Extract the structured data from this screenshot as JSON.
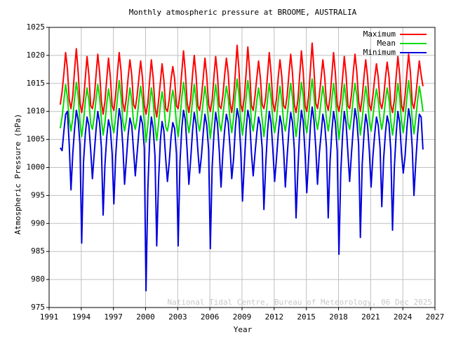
{
  "chart_data": {
    "type": "line",
    "title": "Monthly atmospheric pressure at BROOME, AUSTRALIA",
    "xlabel": "Year",
    "ylabel": "Atmospheric Pressure (hPa)",
    "credit": "National Tidal Centre, Bureau of Meteorology, 06 Dec 2025",
    "xlim": [
      1991,
      2027
    ],
    "xticks": [
      1991,
      1994,
      1997,
      2000,
      2003,
      2006,
      2009,
      2012,
      2015,
      2018,
      2021,
      2024,
      2027
    ],
    "ylim": [
      975,
      1025
    ],
    "yticks": [
      975,
      980,
      985,
      990,
      995,
      1000,
      1005,
      1010,
      1015,
      1020,
      1025
    ],
    "grid": true,
    "legend": "upper right",
    "x": [
      1992.04,
      1992.21,
      1992.38,
      1992.54,
      1992.71,
      1992.88,
      1993.04,
      1993.21,
      1993.38,
      1993.54,
      1993.71,
      1993.88,
      1994.04,
      1994.21,
      1994.38,
      1994.54,
      1994.71,
      1994.88,
      1995.04,
      1995.21,
      1995.38,
      1995.54,
      1995.71,
      1995.88,
      1996.04,
      1996.21,
      1996.38,
      1996.54,
      1996.71,
      1996.88,
      1997.04,
      1997.21,
      1997.38,
      1997.54,
      1997.71,
      1997.88,
      1998.04,
      1998.21,
      1998.38,
      1998.54,
      1998.71,
      1998.88,
      1999.04,
      1999.21,
      1999.38,
      1999.54,
      1999.71,
      1999.88,
      2000.04,
      2000.21,
      2000.38,
      2000.54,
      2000.71,
      2000.88,
      2001.04,
      2001.21,
      2001.38,
      2001.54,
      2001.71,
      2001.88,
      2002.04,
      2002.21,
      2002.38,
      2002.54,
      2002.71,
      2002.88,
      2003.04,
      2003.21,
      2003.38,
      2003.54,
      2003.71,
      2003.88,
      2004.04,
      2004.21,
      2004.38,
      2004.54,
      2004.71,
      2004.88,
      2005.04,
      2005.21,
      2005.38,
      2005.54,
      2005.71,
      2005.88,
      2006.04,
      2006.21,
      2006.38,
      2006.54,
      2006.71,
      2006.88,
      2007.04,
      2007.21,
      2007.38,
      2007.54,
      2007.71,
      2007.88,
      2008.04,
      2008.21,
      2008.38,
      2008.54,
      2008.71,
      2008.88,
      2009.04,
      2009.21,
      2009.38,
      2009.54,
      2009.71,
      2009.88,
      2010.04,
      2010.21,
      2010.38,
      2010.54,
      2010.71,
      2010.88,
      2011.04,
      2011.21,
      2011.38,
      2011.54,
      2011.71,
      2011.88,
      2012.04,
      2012.21,
      2012.38,
      2012.54,
      2012.71,
      2012.88,
      2013.04,
      2013.21,
      2013.38,
      2013.54,
      2013.71,
      2013.88,
      2014.04,
      2014.21,
      2014.38,
      2014.54,
      2014.71,
      2014.88,
      2015.04,
      2015.21,
      2015.38,
      2015.54,
      2015.71,
      2015.88,
      2016.04,
      2016.21,
      2016.38,
      2016.54,
      2016.71,
      2016.88,
      2017.04,
      2017.21,
      2017.38,
      2017.54,
      2017.71,
      2017.88,
      2018.04,
      2018.21,
      2018.38,
      2018.54,
      2018.71,
      2018.88,
      2019.04,
      2019.21,
      2019.38,
      2019.54,
      2019.71,
      2019.88,
      2020.04,
      2020.21,
      2020.38,
      2020.54,
      2020.71,
      2020.88,
      2021.04,
      2021.21,
      2021.38,
      2021.54,
      2021.71,
      2021.88,
      2022.04,
      2022.21,
      2022.38,
      2022.54,
      2022.71,
      2022.88,
      2023.04,
      2023.21,
      2023.38,
      2023.54,
      2023.71,
      2023.88,
      2024.04,
      2024.21,
      2024.38,
      2024.54,
      2024.71,
      2024.88,
      2025.04,
      2025.21,
      2025.38,
      2025.54,
      2025.71,
      2025.88
    ],
    "series": [
      {
        "name": "Maximum",
        "color": "#ff0000",
        "values": [
          1011.2,
          1013.5,
          1016.8,
          1020.5,
          1017.5,
          1012.0,
          1010.5,
          1012.8,
          1017.5,
          1021.2,
          1017.0,
          1011.5,
          1009.8,
          1012.0,
          1016.0,
          1019.8,
          1016.5,
          1011.0,
          1010.5,
          1012.5,
          1016.5,
          1020.2,
          1017.0,
          1011.8,
          1009.5,
          1011.8,
          1015.8,
          1019.5,
          1016.2,
          1011.0,
          1010.2,
          1013.0,
          1017.0,
          1020.5,
          1017.2,
          1011.5,
          1010.0,
          1012.5,
          1016.2,
          1019.2,
          1016.5,
          1011.2,
          1010.5,
          1012.8,
          1016.0,
          1019.0,
          1016.0,
          1011.0,
          1009.5,
          1011.5,
          1015.5,
          1019.2,
          1016.0,
          1010.8,
          1009.0,
          1011.8,
          1015.2,
          1018.5,
          1015.5,
          1010.5,
          1010.0,
          1012.2,
          1015.8,
          1018.0,
          1015.8,
          1011.0,
          1010.5,
          1013.0,
          1017.0,
          1020.8,
          1017.0,
          1011.5,
          1009.8,
          1012.2,
          1016.5,
          1020.0,
          1016.5,
          1011.0,
          1010.2,
          1012.5,
          1016.0,
          1019.5,
          1016.2,
          1011.2,
          1010.0,
          1012.0,
          1016.2,
          1019.8,
          1016.5,
          1011.0,
          1010.5,
          1012.8,
          1016.5,
          1019.5,
          1016.8,
          1011.5,
          1009.8,
          1012.5,
          1017.0,
          1021.8,
          1017.5,
          1011.2,
          1010.0,
          1012.5,
          1016.8,
          1021.5,
          1017.2,
          1011.0,
          1010.2,
          1012.8,
          1016.0,
          1019.0,
          1016.0,
          1011.2,
          1010.5,
          1012.5,
          1016.5,
          1020.5,
          1016.8,
          1011.5,
          1010.0,
          1012.2,
          1016.2,
          1019.2,
          1016.2,
          1011.0,
          1010.5,
          1012.8,
          1016.8,
          1020.2,
          1016.8,
          1011.2,
          1009.8,
          1012.0,
          1016.5,
          1020.8,
          1017.0,
          1011.0,
          1010.0,
          1012.8,
          1017.5,
          1022.2,
          1017.5,
          1011.5,
          1010.5,
          1012.8,
          1016.0,
          1019.2,
          1016.2,
          1011.5,
          1010.2,
          1012.5,
          1016.5,
          1020.5,
          1016.8,
          1011.2,
          1010.0,
          1012.2,
          1016.0,
          1019.8,
          1016.5,
          1011.0,
          1010.5,
          1013.0,
          1017.0,
          1020.2,
          1017.0,
          1011.8,
          1010.0,
          1012.5,
          1016.2,
          1019.2,
          1016.2,
          1011.2,
          1010.2,
          1012.8,
          1016.0,
          1018.5,
          1016.0,
          1011.5,
          1010.5,
          1012.5,
          1016.0,
          1018.8,
          1016.2,
          1011.2,
          1009.8,
          1012.0,
          1016.2,
          1019.8,
          1016.5,
          1011.0,
          1010.0,
          1012.8,
          1016.8,
          1020.2,
          1017.0,
          1011.5,
          1010.5,
          1012.8,
          1016.0,
          1019.0,
          1016.5,
          1014.5
        ]
      },
      {
        "name": "Mean",
        "color": "#00dd00",
        "values": [
          1007.0,
          1009.0,
          1012.0,
          1014.8,
          1012.5,
          1008.5,
          1006.5,
          1008.8,
          1012.5,
          1015.2,
          1012.8,
          1008.0,
          1005.5,
          1008.2,
          1011.8,
          1014.2,
          1012.0,
          1007.8,
          1006.8,
          1009.0,
          1012.2,
          1014.8,
          1012.5,
          1008.5,
          1005.8,
          1008.0,
          1011.5,
          1014.0,
          1011.8,
          1007.5,
          1006.2,
          1009.0,
          1012.5,
          1015.5,
          1012.8,
          1008.2,
          1006.5,
          1008.5,
          1011.8,
          1014.2,
          1012.0,
          1008.0,
          1006.8,
          1008.8,
          1012.0,
          1014.5,
          1012.2,
          1008.2,
          1004.5,
          1007.5,
          1011.5,
          1014.2,
          1011.8,
          1007.5,
          1004.8,
          1007.8,
          1011.2,
          1013.5,
          1011.5,
          1007.2,
          1006.5,
          1008.5,
          1011.8,
          1013.8,
          1011.8,
          1007.8,
          1005.5,
          1008.8,
          1012.5,
          1015.2,
          1012.8,
          1008.2,
          1006.2,
          1008.5,
          1012.0,
          1014.8,
          1012.2,
          1008.0,
          1006.5,
          1008.8,
          1011.8,
          1014.5,
          1012.0,
          1008.2,
          1005.2,
          1008.2,
          1012.0,
          1014.8,
          1012.2,
          1008.0,
          1006.5,
          1009.0,
          1012.2,
          1014.5,
          1012.5,
          1008.5,
          1006.2,
          1008.8,
          1012.8,
          1015.8,
          1013.0,
          1008.2,
          1005.8,
          1008.5,
          1012.5,
          1015.5,
          1012.8,
          1008.0,
          1006.5,
          1009.0,
          1012.0,
          1014.2,
          1012.0,
          1008.5,
          1005.5,
          1008.5,
          1012.2,
          1015.0,
          1012.5,
          1008.2,
          1006.2,
          1008.5,
          1012.0,
          1014.5,
          1012.0,
          1008.0,
          1006.5,
          1009.0,
          1012.5,
          1015.0,
          1012.5,
          1008.2,
          1005.5,
          1008.2,
          1012.2,
          1015.2,
          1012.8,
          1008.0,
          1006.2,
          1009.0,
          1013.0,
          1015.8,
          1013.0,
          1008.5,
          1006.8,
          1009.0,
          1012.0,
          1014.5,
          1012.2,
          1008.5,
          1006.5,
          1008.8,
          1012.2,
          1015.0,
          1012.5,
          1008.2,
          1005.0,
          1008.2,
          1011.8,
          1014.8,
          1012.2,
          1008.0,
          1006.8,
          1009.0,
          1012.5,
          1015.0,
          1012.8,
          1008.8,
          1005.8,
          1008.5,
          1012.0,
          1014.5,
          1012.0,
          1008.2,
          1006.5,
          1009.0,
          1012.0,
          1014.0,
          1012.0,
          1008.5,
          1006.8,
          1008.8,
          1012.0,
          1014.2,
          1012.2,
          1008.2,
          1005.8,
          1008.2,
          1012.0,
          1015.0,
          1012.5,
          1008.0,
          1006.2,
          1009.0,
          1012.5,
          1015.5,
          1012.8,
          1008.5,
          1006.0,
          1008.8,
          1012.0,
          1014.5,
          1012.5,
          1010.0
        ]
      },
      {
        "name": "Minimum",
        "color": "#0000dd",
        "values": [
          1003.5,
          1003.0,
          1006.5,
          1009.5,
          1010.0,
          1004.0,
          996.0,
          1002.5,
          1007.0,
          1010.2,
          1008.5,
          1004.0,
          986.5,
          1001.0,
          1006.0,
          1009.0,
          1007.5,
          1003.0,
          998.0,
          1002.5,
          1006.8,
          1010.0,
          1008.0,
          1003.5,
          991.5,
          1000.5,
          1005.5,
          1008.5,
          1007.0,
          1002.5,
          993.5,
          1002.0,
          1007.0,
          1010.5,
          1008.5,
          1003.8,
          997.0,
          1001.5,
          1006.0,
          1008.8,
          1007.5,
          1003.0,
          998.5,
          1002.5,
          1006.5,
          1009.2,
          1007.8,
          1003.5,
          978.0,
          996.0,
          1005.0,
          1009.0,
          1007.0,
          1002.0,
          986.0,
          997.5,
          1004.8,
          1008.2,
          1006.5,
          1001.5,
          997.5,
          1001.0,
          1005.5,
          1008.0,
          1007.0,
          1002.5,
          986.0,
          1001.0,
          1007.0,
          1010.2,
          1008.5,
          1003.0,
          997.0,
          1001.5,
          1006.5,
          1009.8,
          1007.8,
          1003.0,
          999.0,
          1002.0,
          1006.2,
          1009.5,
          1007.5,
          1003.2,
          985.5,
          1000.0,
          1006.0,
          1009.8,
          1007.8,
          1002.8,
          996.5,
          1002.5,
          1006.8,
          1009.5,
          1008.0,
          1003.5,
          998.0,
          1001.5,
          1007.2,
          1010.5,
          1008.8,
          1003.0,
          994.0,
          1000.5,
          1006.8,
          1010.2,
          1008.5,
          1002.5,
          998.5,
          1002.5,
          1006.2,
          1009.0,
          1007.5,
          1003.5,
          992.5,
          1000.5,
          1006.5,
          1010.0,
          1008.0,
          1003.0,
          997.5,
          1001.5,
          1006.0,
          1009.2,
          1007.5,
          1003.0,
          996.5,
          1002.0,
          1006.8,
          1009.8,
          1008.0,
          1003.2,
          991.0,
          999.5,
          1006.5,
          1010.2,
          1008.2,
          1002.5,
          995.5,
          1001.5,
          1007.5,
          1010.8,
          1008.5,
          1003.5,
          997.0,
          1002.5,
          1006.0,
          1009.5,
          1007.8,
          1003.5,
          991.0,
          1001.0,
          1006.5,
          1010.0,
          1008.0,
          1003.0,
          984.5,
          999.0,
          1005.8,
          1010.0,
          1007.8,
          1002.5,
          997.5,
          1002.5,
          1007.0,
          1010.5,
          1008.5,
          1004.0,
          987.5,
          1000.5,
          1006.0,
          1009.5,
          1007.5,
          1002.8,
          996.5,
          1002.0,
          1006.0,
          1009.0,
          1007.5,
          1003.5,
          993.0,
          1001.5,
          1006.2,
          1009.2,
          1007.8,
          1003.0,
          988.8,
          1000.0,
          1006.0,
          1010.0,
          1008.0,
          1002.5,
          999.0,
          1002.0,
          1007.0,
          1010.5,
          1008.5,
          1003.5,
          995.0,
          1001.0,
          1006.0,
          1009.5,
          1009.0,
          1003.2
        ]
      }
    ]
  }
}
